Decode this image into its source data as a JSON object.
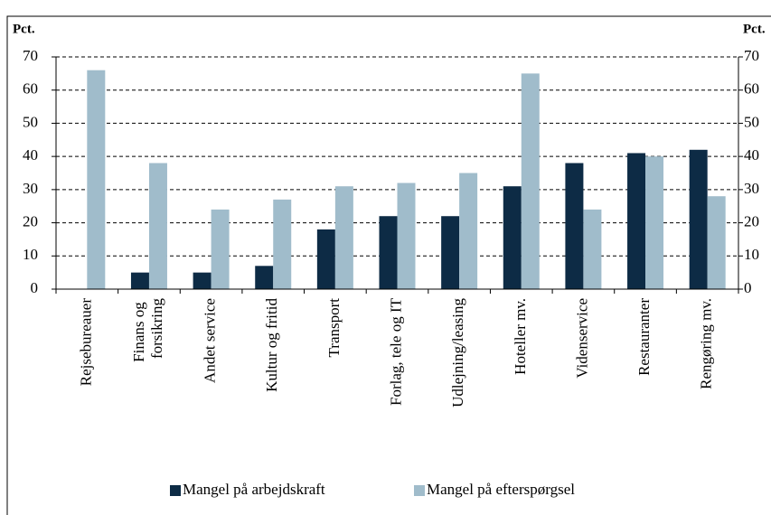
{
  "chart_data": {
    "type": "bar",
    "ylabel": "Pct.",
    "y2label": "Pct.",
    "categories": [
      "Rejsebureauer",
      "Finans og\nforsikring",
      "Andet service",
      "Kultur og fritid",
      "Transport",
      "Forlag, tele og IT",
      "Udlejning/leasing",
      "Hoteller mv.",
      "Videnservice",
      "Restauranter",
      "Rengøring mv."
    ],
    "series": [
      {
        "name": "Mangel på arbejdskraft",
        "color": "#0d2b45",
        "values": [
          0,
          5,
          5,
          7,
          18,
          22,
          22,
          31,
          38,
          41,
          42
        ]
      },
      {
        "name": "Mangel på efterspørgsel",
        "color": "#a0bccb",
        "values": [
          66,
          38,
          24,
          27,
          31,
          32,
          35,
          65,
          24,
          40,
          28
        ]
      }
    ],
    "ylim": [
      0,
      70
    ],
    "yticks": [
      0,
      10,
      20,
      30,
      40,
      50,
      60,
      70
    ],
    "y2lim": [
      0,
      70
    ],
    "y2ticks": [
      0,
      10,
      20,
      30,
      40,
      50,
      60,
      70
    ],
    "grid": true,
    "legend": "bottom"
  }
}
